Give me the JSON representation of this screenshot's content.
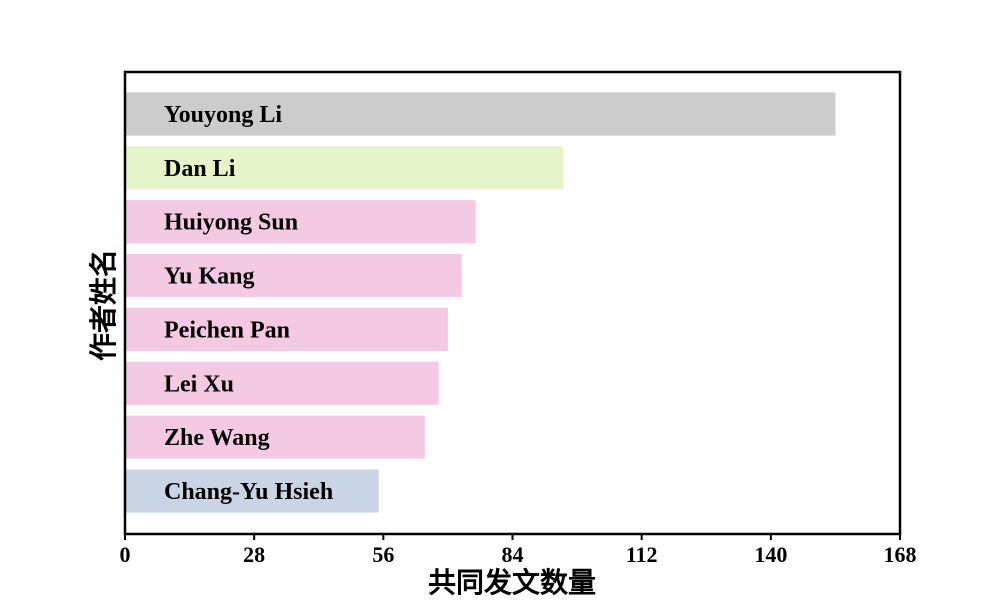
{
  "chart_data": {
    "type": "bar",
    "orientation": "horizontal",
    "title": "",
    "xlabel": "共同发文数量",
    "ylabel": "作者姓名",
    "xlim": [
      0,
      168
    ],
    "xticks": [
      0,
      28,
      56,
      84,
      112,
      140,
      168
    ],
    "grid": false,
    "legend": "none",
    "categories": [
      "Youyong Li",
      "Dan Li",
      "Huiyong Sun",
      "Yu Kang",
      "Peichen Pan",
      "Lei Xu",
      "Zhe Wang",
      "Chang-Yu Hsieh"
    ],
    "values": [
      154,
      95,
      76,
      73,
      70,
      68,
      65,
      55
    ],
    "colors": [
      "#cccccc",
      "#e5f4c9",
      "#f3c9e4",
      "#f3c9e4",
      "#f3c9e4",
      "#f3c9e4",
      "#f3c9e4",
      "#c9d4e5"
    ]
  }
}
